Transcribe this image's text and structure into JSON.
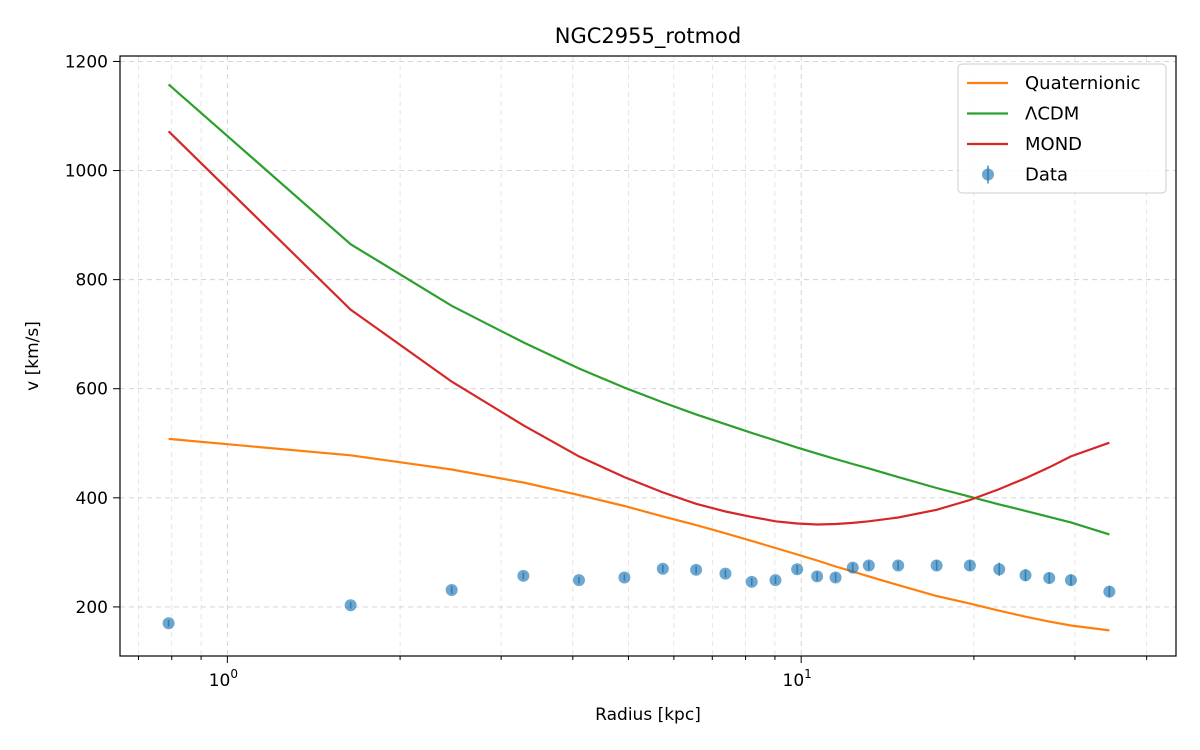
{
  "chart_data": {
    "type": "line",
    "title": "NGC2955_rotmod",
    "xlabel": "Radius [kpc]",
    "ylabel": "v [km/s]",
    "xscale": "log",
    "xlim": [
      0.65,
      45
    ],
    "ylim": [
      110,
      1210
    ],
    "xticks_major": [
      {
        "value": 1,
        "base": "10",
        "exp": "0"
      },
      {
        "value": 10,
        "base": "10",
        "exp": "1"
      }
    ],
    "yticks": [
      200,
      400,
      600,
      800,
      1000,
      1200
    ],
    "grid": true,
    "legend_position": "top-right",
    "colors": {
      "quaternionic": "#ff7f0e",
      "lcdm": "#2ca02c",
      "mond": "#d62728",
      "data": "#1f77b4"
    },
    "series": [
      {
        "name": "Quaternionic",
        "x": [
          0.79,
          1.64,
          2.46,
          3.28,
          4.1,
          4.92,
          5.74,
          6.56,
          7.38,
          8.2,
          9.02,
          9.84,
          10.66,
          11.48,
          12.3,
          13.12,
          14.76,
          17.22,
          19.68,
          22.14,
          24.6,
          27.06,
          29.52,
          34.44
        ],
        "y": [
          508,
          478,
          452,
          428,
          405,
          385,
          366,
          350,
          335,
          321,
          308,
          296,
          285,
          274,
          265,
          256,
          240,
          220,
          206,
          193,
          182,
          173,
          166,
          157
        ]
      },
      {
        "name": "ΛCDM",
        "x": [
          0.79,
          1.64,
          2.46,
          3.28,
          4.1,
          4.92,
          5.74,
          6.56,
          7.38,
          8.2,
          9.02,
          9.84,
          10.66,
          11.48,
          12.3,
          13.12,
          14.76,
          17.22,
          19.68,
          22.14,
          24.6,
          27.06,
          29.52,
          34.44
        ],
        "y": [
          1158,
          865,
          752,
          685,
          637,
          602,
          575,
          553,
          535,
          519,
          505,
          492,
          481,
          471,
          462,
          454,
          438,
          418,
          402,
          388,
          376,
          365,
          355,
          333
        ]
      },
      {
        "name": "MOND",
        "x": [
          0.79,
          1.64,
          2.46,
          3.28,
          4.1,
          4.92,
          5.74,
          6.56,
          7.38,
          8.2,
          9.02,
          9.84,
          10.66,
          11.48,
          12.3,
          13.12,
          14.76,
          17.22,
          19.68,
          22.14,
          24.6,
          27.06,
          29.52,
          34.44
        ],
        "y": [
          1072,
          745,
          613,
          533,
          476,
          438,
          410,
          389,
          375,
          365,
          357,
          353,
          351,
          352,
          354,
          357,
          364,
          378,
          396,
          416,
          436,
          456,
          476,
          501
        ]
      },
      {
        "name": "Data",
        "kind": "errorbar",
        "x": [
          0.79,
          1.64,
          2.46,
          3.28,
          4.1,
          4.92,
          5.74,
          6.56,
          7.38,
          8.2,
          9.02,
          9.84,
          10.66,
          11.48,
          12.3,
          13.12,
          14.76,
          17.22,
          19.68,
          22.14,
          24.6,
          27.06,
          29.52,
          34.44
        ],
        "y": [
          170,
          203,
          231,
          257,
          249,
          254,
          270,
          268,
          261,
          246,
          249,
          269,
          256,
          254,
          272,
          276,
          276,
          276,
          276,
          269,
          258,
          253,
          249,
          228
        ],
        "err": [
          6,
          6,
          7,
          6,
          6,
          6,
          7,
          7,
          7,
          7,
          7,
          8,
          8,
          8,
          8,
          8,
          8,
          9,
          9,
          12,
          11,
          10,
          10,
          10
        ]
      }
    ]
  }
}
